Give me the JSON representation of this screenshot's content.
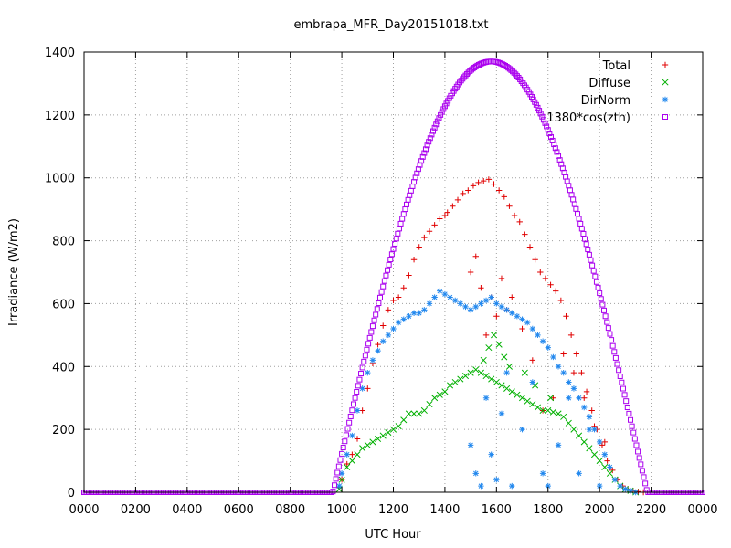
{
  "chart_data": {
    "type": "scatter",
    "title": "embrapa_MFR_Day20151018.txt",
    "xlabel": "UTC Hour",
    "ylabel": "Irradiance (W/m2)",
    "xlim": [
      0,
      24
    ],
    "ylim": [
      0,
      1400
    ],
    "x_ticks": [
      0,
      2,
      4,
      6,
      8,
      10,
      12,
      14,
      16,
      18,
      20,
      22,
      24
    ],
    "x_tick_labels": [
      "0000",
      "0200",
      "0400",
      "0600",
      "0800",
      "1000",
      "1200",
      "1400",
      "1600",
      "1800",
      "2000",
      "2200",
      "0000"
    ],
    "y_ticks": [
      0,
      200,
      400,
      600,
      800,
      1000,
      1200,
      1400
    ],
    "y_tick_labels": [
      "0",
      "200",
      "400",
      "600",
      "800",
      "1000",
      "1200",
      "1400"
    ],
    "grid": true,
    "legend_position": "top-right",
    "series": [
      {
        "name": "Total",
        "color": "#e00000",
        "marker": "plus",
        "x": [
          9.9,
          10.0,
          10.2,
          10.4,
          10.6,
          10.8,
          11.0,
          11.2,
          11.4,
          11.6,
          11.8,
          12.0,
          12.2,
          12.4,
          12.6,
          12.8,
          13.0,
          13.2,
          13.4,
          13.6,
          13.8,
          14.0,
          14.1,
          14.3,
          14.5,
          14.7,
          14.9,
          15.1,
          15.3,
          15.5,
          15.7,
          15.9,
          16.1,
          16.3,
          16.5,
          16.7,
          16.9,
          17.1,
          17.3,
          17.5,
          17.7,
          17.9,
          18.1,
          18.3,
          18.5,
          18.7,
          18.9,
          19.1,
          19.3,
          19.5,
          19.7,
          19.9,
          20.1,
          20.3,
          20.5,
          20.7,
          20.9,
          21.1,
          21.3,
          21.5,
          21.7,
          15.0,
          15.2,
          15.4,
          15.6,
          15.8,
          16.0,
          16.2,
          16.4,
          16.6,
          17.0,
          17.4,
          17.8,
          18.2,
          18.6,
          19.0,
          19.4,
          19.8,
          20.2
        ],
        "y": [
          15,
          40,
          90,
          120,
          170,
          260,
          330,
          410,
          470,
          530,
          580,
          610,
          620,
          650,
          690,
          740,
          780,
          810,
          830,
          850,
          870,
          880,
          890,
          910,
          930,
          950,
          960,
          975,
          985,
          990,
          995,
          980,
          960,
          940,
          910,
          880,
          860,
          820,
          780,
          740,
          700,
          680,
          660,
          640,
          610,
          560,
          500,
          440,
          380,
          320,
          260,
          200,
          150,
          100,
          70,
          40,
          20,
          10,
          5,
          2,
          0,
          700,
          750,
          650,
          500,
          620,
          560,
          680,
          580,
          620,
          520,
          420,
          260,
          300,
          440,
          380,
          300,
          210,
          160
        ]
      },
      {
        "name": "Diffuse",
        "color": "#00b000",
        "marker": "cross",
        "x": [
          9.9,
          10.0,
          10.2,
          10.4,
          10.6,
          10.8,
          11.0,
          11.2,
          11.4,
          11.6,
          11.8,
          12.0,
          12.2,
          12.4,
          12.6,
          12.8,
          13.0,
          13.2,
          13.4,
          13.6,
          13.8,
          14.0,
          14.2,
          14.4,
          14.6,
          14.8,
          15.0,
          15.2,
          15.4,
          15.6,
          15.8,
          16.0,
          16.2,
          16.4,
          16.6,
          16.8,
          17.0,
          17.2,
          17.4,
          17.6,
          17.8,
          18.0,
          18.2,
          18.4,
          18.6,
          18.8,
          19.0,
          19.2,
          19.4,
          19.6,
          19.8,
          20.0,
          20.2,
          20.4,
          20.6,
          20.8,
          21.0,
          21.2,
          21.4,
          15.5,
          15.7,
          15.9,
          16.1,
          16.3,
          16.5,
          17.1,
          17.5,
          18.1
        ],
        "y": [
          10,
          40,
          80,
          100,
          120,
          140,
          150,
          160,
          170,
          180,
          190,
          200,
          210,
          230,
          250,
          250,
          250,
          260,
          280,
          300,
          310,
          320,
          340,
          350,
          360,
          370,
          380,
          390,
          380,
          370,
          360,
          350,
          340,
          330,
          320,
          310,
          300,
          290,
          280,
          270,
          260,
          260,
          255,
          250,
          240,
          220,
          200,
          180,
          160,
          140,
          120,
          100,
          80,
          60,
          40,
          20,
          10,
          5,
          0,
          420,
          460,
          500,
          470,
          430,
          400,
          380,
          340,
          300
        ]
      },
      {
        "name": "DirNorm",
        "color": "#2288ee",
        "marker": "star",
        "x": [
          9.9,
          10.0,
          10.2,
          10.4,
          10.6,
          10.8,
          11.0,
          11.2,
          11.4,
          11.6,
          11.8,
          12.0,
          12.2,
          12.4,
          12.6,
          12.8,
          13.0,
          13.2,
          13.4,
          13.6,
          13.8,
          14.0,
          14.2,
          14.4,
          14.6,
          14.8,
          15.0,
          15.2,
          15.4,
          15.6,
          15.8,
          16.0,
          16.2,
          16.4,
          16.6,
          16.8,
          17.0,
          17.2,
          17.4,
          17.6,
          17.8,
          18.0,
          18.2,
          18.4,
          18.6,
          18.8,
          19.0,
          19.2,
          19.4,
          19.6,
          19.8,
          20.0,
          20.2,
          20.4,
          20.6,
          20.8,
          21.0,
          21.2,
          21.4,
          15.0,
          15.2,
          15.4,
          15.6,
          15.8,
          16.0,
          16.2,
          16.4,
          16.6,
          17.0,
          17.4,
          17.8,
          18.0,
          18.4,
          18.8,
          19.2,
          19.6,
          20.0
        ],
        "y": [
          20,
          60,
          120,
          180,
          260,
          330,
          380,
          420,
          450,
          480,
          500,
          520,
          540,
          550,
          560,
          570,
          570,
          580,
          600,
          620,
          640,
          630,
          620,
          610,
          600,
          590,
          580,
          590,
          600,
          610,
          620,
          600,
          590,
          580,
          570,
          560,
          550,
          540,
          520,
          500,
          480,
          460,
          430,
          400,
          380,
          350,
          330,
          300,
          270,
          240,
          200,
          160,
          120,
          80,
          40,
          20,
          10,
          5,
          0,
          150,
          60,
          20,
          300,
          120,
          40,
          250,
          380,
          20,
          200,
          350,
          60,
          20,
          150,
          300,
          60,
          200,
          20
        ]
      },
      {
        "name": "1380*cos(zth)",
        "color": "#aa00ee",
        "marker": "square",
        "function": "clearsky",
        "peak": 1370,
        "x_peak": 15.8,
        "x_rise": 9.65,
        "x_set": 21.85
      }
    ]
  }
}
